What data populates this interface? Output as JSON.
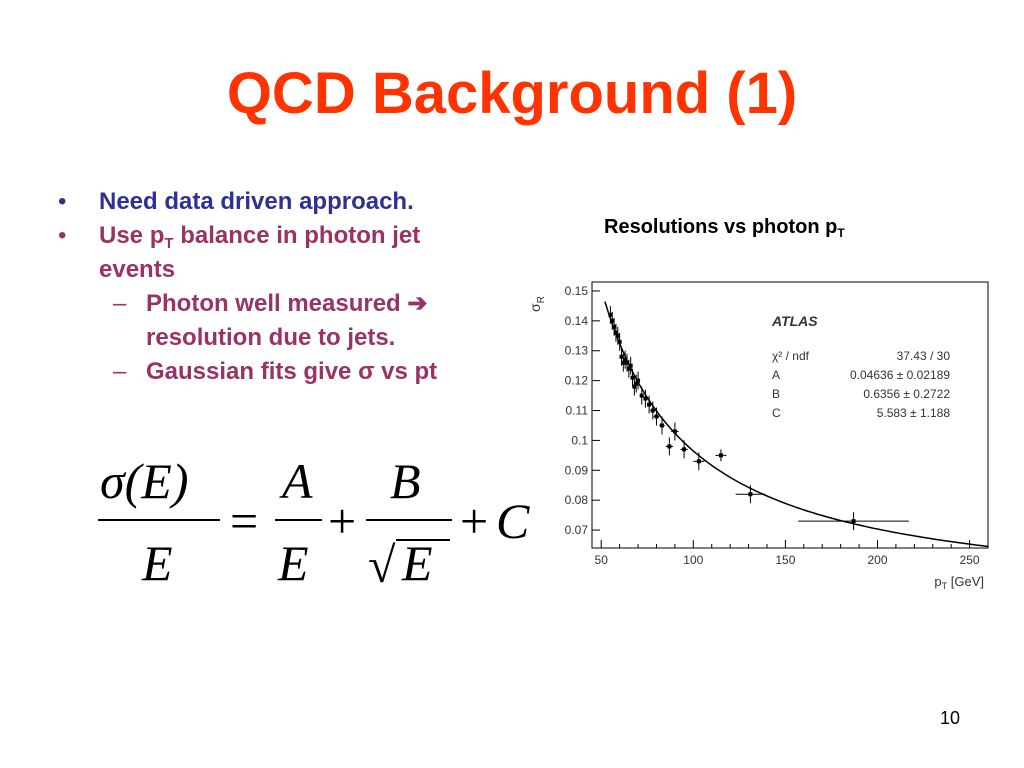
{
  "slide": {
    "title": "QCD Background (1)",
    "page_number": "10",
    "bullet_char": "•",
    "dash_char": "–",
    "bullets": [
      {
        "text": "Need data driven approach."
      },
      {
        "text_pre": "Use p",
        "sub": "T",
        "text_post": " balance in photon jet events"
      }
    ],
    "subbullets": [
      {
        "text": "Photon well measured ➔ resolution due to jets."
      },
      {
        "text": "Gaussian fits give σ vs pt"
      }
    ],
    "caption": {
      "text": "Resolutions vs photon p",
      "sub": "T"
    },
    "formula": {
      "lhs_num": "σ(E)",
      "lhs_den": "E",
      "eq": "=",
      "t1_num": "A",
      "t1_den": "E",
      "plus": "+",
      "t2_num": "B",
      "t2_den": "E",
      "sqrt": "√",
      "plus2": "+",
      "t3": "C"
    },
    "colors": {
      "title": "#ff3300",
      "bullet1": "#2e3192",
      "bullet2": "#993366"
    }
  },
  "chart_data": {
    "type": "scatter",
    "ylabel": "σ",
    "ylabel_sub": "R",
    "xlabel": "p",
    "xlabel_sub": "T",
    "xlabel_unit": " [GeV]",
    "xlim": [
      45,
      260
    ],
    "ylim": [
      0.064,
      0.153
    ],
    "x_ticks": [
      50,
      100,
      150,
      200,
      250
    ],
    "x_tick_labels": [
      "50",
      "100",
      "150",
      "200",
      "250"
    ],
    "y_ticks": [
      0.07,
      0.08,
      0.09,
      0.1,
      0.11,
      0.12,
      0.13,
      0.14,
      0.15
    ],
    "y_tick_labels": [
      "0.07",
      "0.08",
      "0.09",
      "0.1",
      "0.11",
      "0.12",
      "0.13",
      "0.14",
      "0.15"
    ],
    "grid": false,
    "legend_placement": "top-right",
    "annotation": "ATLAS",
    "stats": [
      {
        "label": "χ² / ndf",
        "value": "37.43 / 30"
      },
      {
        "label": "A",
        "value": "0.04636 ± 0.02189"
      },
      {
        "label": "B",
        "value": "0.6356 ± 0.2722"
      },
      {
        "label": "C",
        "value": "5.583 ± 1.188"
      }
    ],
    "fit": {
      "A": 0.04636,
      "B": 0.6356,
      "C": 5.583
    },
    "points": [
      {
        "x": 55,
        "y": 0.142,
        "ex": 1,
        "ey": 0.003
      },
      {
        "x": 56,
        "y": 0.14,
        "ex": 1,
        "ey": 0.003
      },
      {
        "x": 57,
        "y": 0.138,
        "ex": 1,
        "ey": 0.003
      },
      {
        "x": 58,
        "y": 0.136,
        "ex": 1,
        "ey": 0.003
      },
      {
        "x": 59,
        "y": 0.135,
        "ex": 1,
        "ey": 0.003
      },
      {
        "x": 60,
        "y": 0.133,
        "ex": 1,
        "ey": 0.003
      },
      {
        "x": 61,
        "y": 0.128,
        "ex": 1,
        "ey": 0.003
      },
      {
        "x": 62,
        "y": 0.126,
        "ex": 1,
        "ey": 0.003
      },
      {
        "x": 63,
        "y": 0.127,
        "ex": 1,
        "ey": 0.003
      },
      {
        "x": 64,
        "y": 0.126,
        "ex": 1,
        "ey": 0.003
      },
      {
        "x": 65,
        "y": 0.124,
        "ex": 1,
        "ey": 0.003
      },
      {
        "x": 66,
        "y": 0.125,
        "ex": 1,
        "ey": 0.003
      },
      {
        "x": 67,
        "y": 0.121,
        "ex": 1,
        "ey": 0.003
      },
      {
        "x": 68,
        "y": 0.118,
        "ex": 1,
        "ey": 0.003
      },
      {
        "x": 69,
        "y": 0.119,
        "ex": 1,
        "ey": 0.003
      },
      {
        "x": 70,
        "y": 0.12,
        "ex": 1,
        "ey": 0.003
      },
      {
        "x": 72,
        "y": 0.115,
        "ex": 1,
        "ey": 0.003
      },
      {
        "x": 74,
        "y": 0.114,
        "ex": 1,
        "ey": 0.003
      },
      {
        "x": 76,
        "y": 0.112,
        "ex": 1,
        "ey": 0.003
      },
      {
        "x": 78,
        "y": 0.11,
        "ex": 1.5,
        "ey": 0.003
      },
      {
        "x": 80,
        "y": 0.108,
        "ex": 1.5,
        "ey": 0.003
      },
      {
        "x": 83,
        "y": 0.105,
        "ex": 1.5,
        "ey": 0.003
      },
      {
        "x": 87,
        "y": 0.098,
        "ex": 2,
        "ey": 0.003
      },
      {
        "x": 90,
        "y": 0.103,
        "ex": 2,
        "ey": 0.003
      },
      {
        "x": 95,
        "y": 0.097,
        "ex": 2,
        "ey": 0.003
      },
      {
        "x": 103,
        "y": 0.093,
        "ex": 3,
        "ey": 0.003
      },
      {
        "x": 115,
        "y": 0.095,
        "ex": 3,
        "ey": 0.002
      },
      {
        "x": 131,
        "y": 0.082,
        "ex": 8,
        "ey": 0.003
      },
      {
        "x": 187,
        "y": 0.073,
        "ex": 30,
        "ey": 0.003
      }
    ]
  }
}
